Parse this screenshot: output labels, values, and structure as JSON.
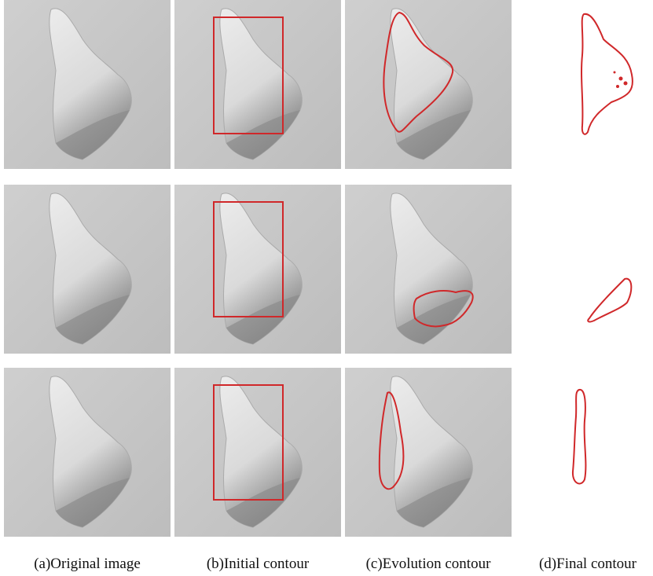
{
  "captions": [
    "(a)Original image",
    "(b)Initial contour",
    "(c)Evolution contour",
    "(d)Final contour"
  ]
}
